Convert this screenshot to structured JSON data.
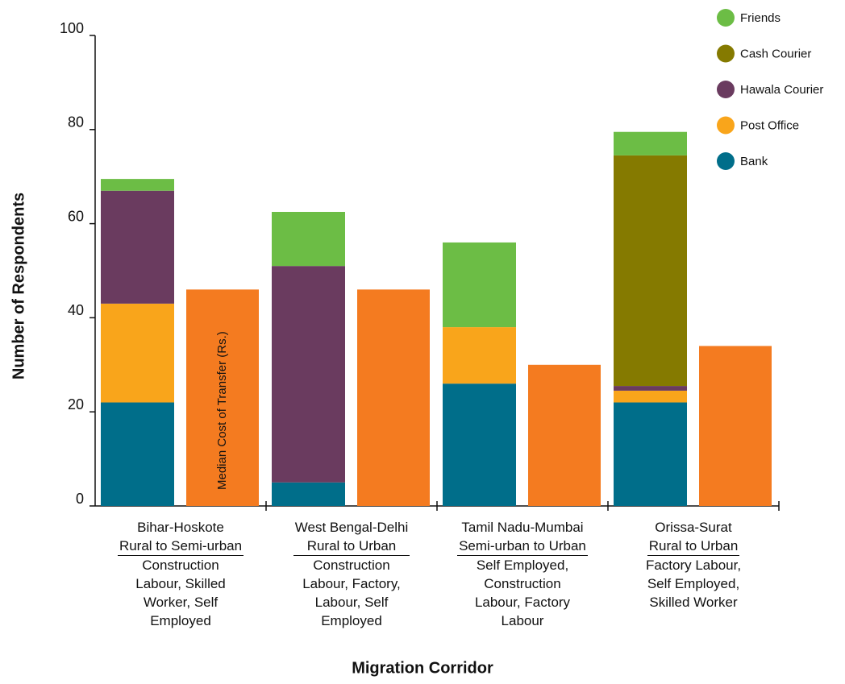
{
  "chart_data": {
    "type": "stacked_bar",
    "y_label": "Number of Respondents",
    "x_label": "Migration Corridor",
    "categories": [
      "Bihar-Hoskote",
      "West Bengal-Delhi",
      "Tamil Nadu-Mumbai",
      "Orissa-Surat"
    ],
    "category_types": [
      "Rural to Semi-urban",
      "Rural to Urban",
      "Semi-urban to Urban",
      "Rural to Urban"
    ],
    "category_occupations": [
      "Construction Labour, Skilled Worker, Self Employed",
      "Construction Labour, Factory, Labour, Self Employed",
      "Self Employed, Construction Labour, Factory Labour",
      "Factory Labour, Self Employed, Skilled Worker"
    ],
    "series": [
      {
        "name": "Bank",
        "color": "#006e8a",
        "values": [
          22,
          5,
          26,
          22
        ]
      },
      {
        "name": "Post Office",
        "color": "#f9a51b",
        "values": [
          21,
          null,
          12,
          2.5
        ]
      },
      {
        "name": "Hawala Courier",
        "color": "#6a3b5f",
        "values": [
          24,
          46,
          null,
          1
        ]
      },
      {
        "name": "Cash Courier",
        "color": "#857a00",
        "values": [
          null,
          null,
          null,
          49
        ]
      },
      {
        "name": "Friends",
        "color": "#6cbd45",
        "values": [
          2.5,
          11.5,
          18,
          5
        ]
      }
    ],
    "median_cost": {
      "name": "Median Cost of Transfer (Rs.)",
      "color": "#f47b20",
      "values": [
        46,
        46,
        30,
        34
      ]
    },
    "ylim": [
      0,
      100
    ],
    "yticks": [
      0,
      20,
      40,
      60,
      80,
      100
    ]
  }
}
